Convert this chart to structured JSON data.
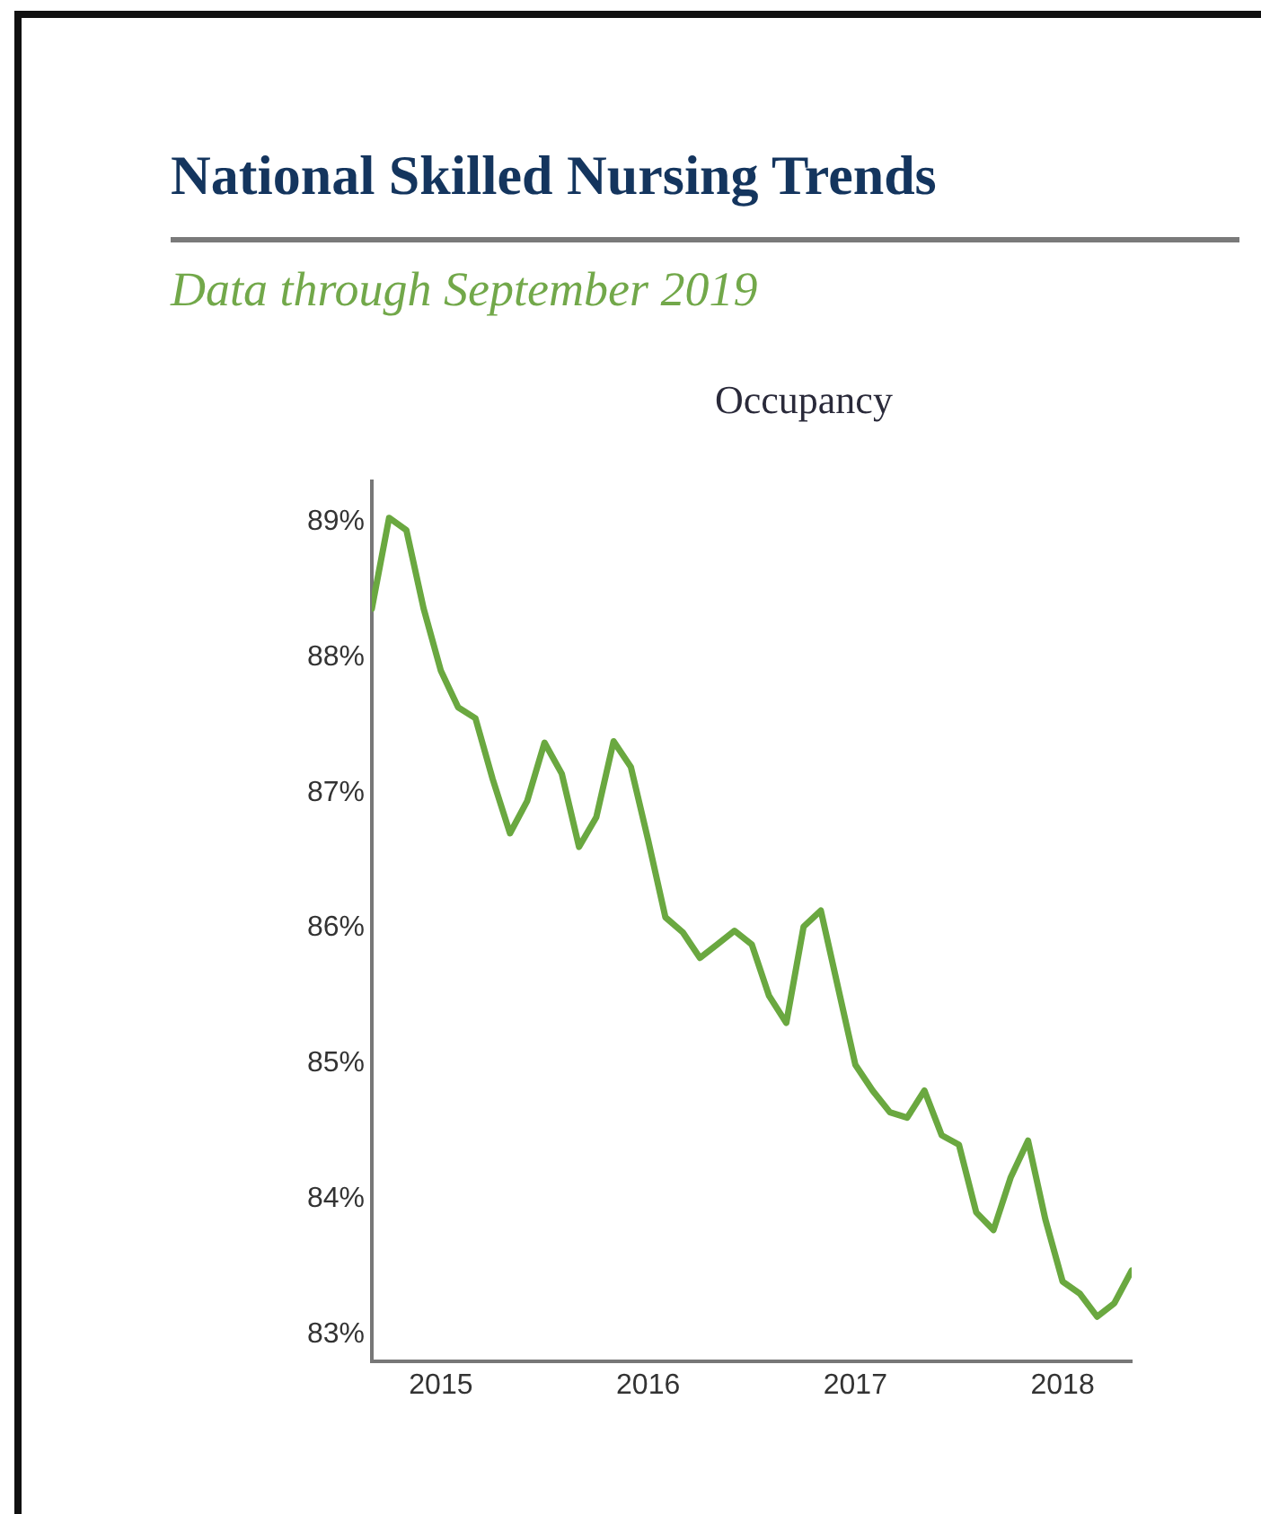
{
  "chart_data": {
    "type": "line",
    "title": "National Skilled Nursing Trends",
    "subtitle": "Data through September 2019",
    "annotations": [
      "Occupancy"
    ],
    "x": [
      "2014-09",
      "2014-10",
      "2014-11",
      "2014-12",
      "2015-01",
      "2015-02",
      "2015-03",
      "2015-04",
      "2015-05",
      "2015-06",
      "2015-07",
      "2015-08",
      "2015-09",
      "2015-10",
      "2015-11",
      "2015-12",
      "2016-01",
      "2016-02",
      "2016-03",
      "2016-04",
      "2016-05",
      "2016-06",
      "2016-07",
      "2016-08",
      "2016-09",
      "2016-10",
      "2016-11",
      "2016-12",
      "2017-01",
      "2017-02",
      "2017-03",
      "2017-04",
      "2017-05",
      "2017-06",
      "2017-07",
      "2017-08",
      "2017-09",
      "2017-10",
      "2017-11",
      "2017-12",
      "2018-01",
      "2018-02",
      "2018-03",
      "2018-04",
      "2018-05"
    ],
    "values": [
      88.36,
      89.03,
      88.94,
      88.36,
      87.9,
      87.63,
      87.55,
      87.1,
      86.7,
      86.94,
      87.37,
      87.14,
      86.6,
      86.82,
      87.38,
      87.19,
      86.65,
      86.08,
      85.97,
      85.78,
      85.88,
      85.98,
      85.88,
      85.5,
      85.3,
      86.01,
      86.13,
      85.56,
      84.99,
      84.8,
      84.64,
      84.6,
      84.8,
      84.47,
      84.4,
      83.9,
      83.77,
      84.16,
      84.43,
      83.85,
      83.39,
      83.3,
      83.13,
      83.23,
      83.47
    ],
    "color": "#6aa840",
    "xlim": [
      "2014-09",
      "2018-05"
    ],
    "xticks": [
      {
        "value": "2015-01",
        "label": "2015"
      },
      {
        "value": "2016-01",
        "label": "2016"
      },
      {
        "value": "2017-01",
        "label": "2017"
      },
      {
        "value": "2018-01",
        "label": "2018"
      }
    ],
    "ylim": [
      82.8,
      89.3
    ],
    "yticks": [
      {
        "value": 83,
        "label": "83%"
      },
      {
        "value": 84,
        "label": "84%"
      },
      {
        "value": 85,
        "label": "85%"
      },
      {
        "value": 86,
        "label": "86%"
      },
      {
        "value": 87,
        "label": "87%"
      },
      {
        "value": 88,
        "label": "88%"
      },
      {
        "value": 89,
        "label": "89%"
      }
    ],
    "grid": false,
    "legend": false,
    "marker": "none",
    "line_style": "solid"
  }
}
